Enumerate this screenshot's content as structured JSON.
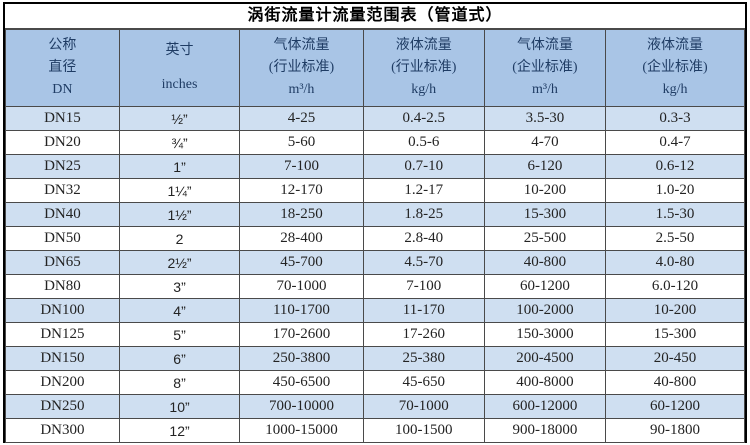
{
  "title": "涡街流量计流量范围表（管道式）",
  "colors": {
    "header_bg": "#a9c5e6",
    "row_alt_bg": "#cfdff1",
    "row_bg": "#ffffff",
    "grid_line": "#4a4a4a",
    "outer_border": "#000000",
    "header_text": "#1f3c64",
    "body_text": "#232323",
    "title_text": "#000000"
  },
  "table": {
    "headers": [
      {
        "lines": [
          "公称",
          "直径",
          "DN"
        ]
      },
      {
        "lines": [
          "英寸",
          "inches"
        ]
      },
      {
        "lines": [
          "气体流量",
          "(行业标准)",
          "m³/h"
        ]
      },
      {
        "lines": [
          "液体流量",
          "(行业标准)",
          "kg/h"
        ]
      },
      {
        "lines": [
          "气体流量",
          "(企业标准)",
          "m³/h"
        ]
      },
      {
        "lines": [
          "液体流量",
          "(企业标准)",
          "kg/h"
        ]
      }
    ],
    "rows": [
      [
        "DN15",
        "½”",
        "4-25",
        "0.4-2.5",
        "3.5-30",
        "0.3-3"
      ],
      [
        "DN20",
        "¾”",
        "5-60",
        "0.5-6",
        "4-70",
        "0.4-7"
      ],
      [
        "DN25",
        "1”",
        "7-100",
        "0.7-10",
        "6-120",
        "0.6-12"
      ],
      [
        "DN32",
        "1¼”",
        "12-170",
        "1.2-17",
        "10-200",
        "1.0-20"
      ],
      [
        "DN40",
        "1½”",
        "18-250",
        "1.8-25",
        "15-300",
        "1.5-30"
      ],
      [
        "DN50",
        "2",
        "28-400",
        "2.8-40",
        "25-500",
        "2.5-50"
      ],
      [
        "DN65",
        "2½”",
        "45-700",
        "4.5-70",
        "40-800",
        "4.0-80"
      ],
      [
        "DN80",
        "3”",
        "70-1000",
        "7-100",
        "60-1200",
        "6.0-120"
      ],
      [
        "DN100",
        "4”",
        "110-1700",
        "11-170",
        "100-2000",
        "10-200"
      ],
      [
        "DN125",
        "5”",
        "170-2600",
        "17-260",
        "150-3000",
        "15-300"
      ],
      [
        "DN150",
        "6”",
        "250-3800",
        "25-380",
        "200-4500",
        "20-450"
      ],
      [
        "DN200",
        "8”",
        "450-6500",
        "45-650",
        "400-8000",
        "40-800"
      ],
      [
        "DN250",
        "10”",
        "700-10000",
        "70-1000",
        "600-12000",
        "60-1200"
      ],
      [
        "DN300",
        "12”",
        "1000-15000",
        "100-1500",
        "900-18000",
        "90-1800"
      ]
    ]
  }
}
